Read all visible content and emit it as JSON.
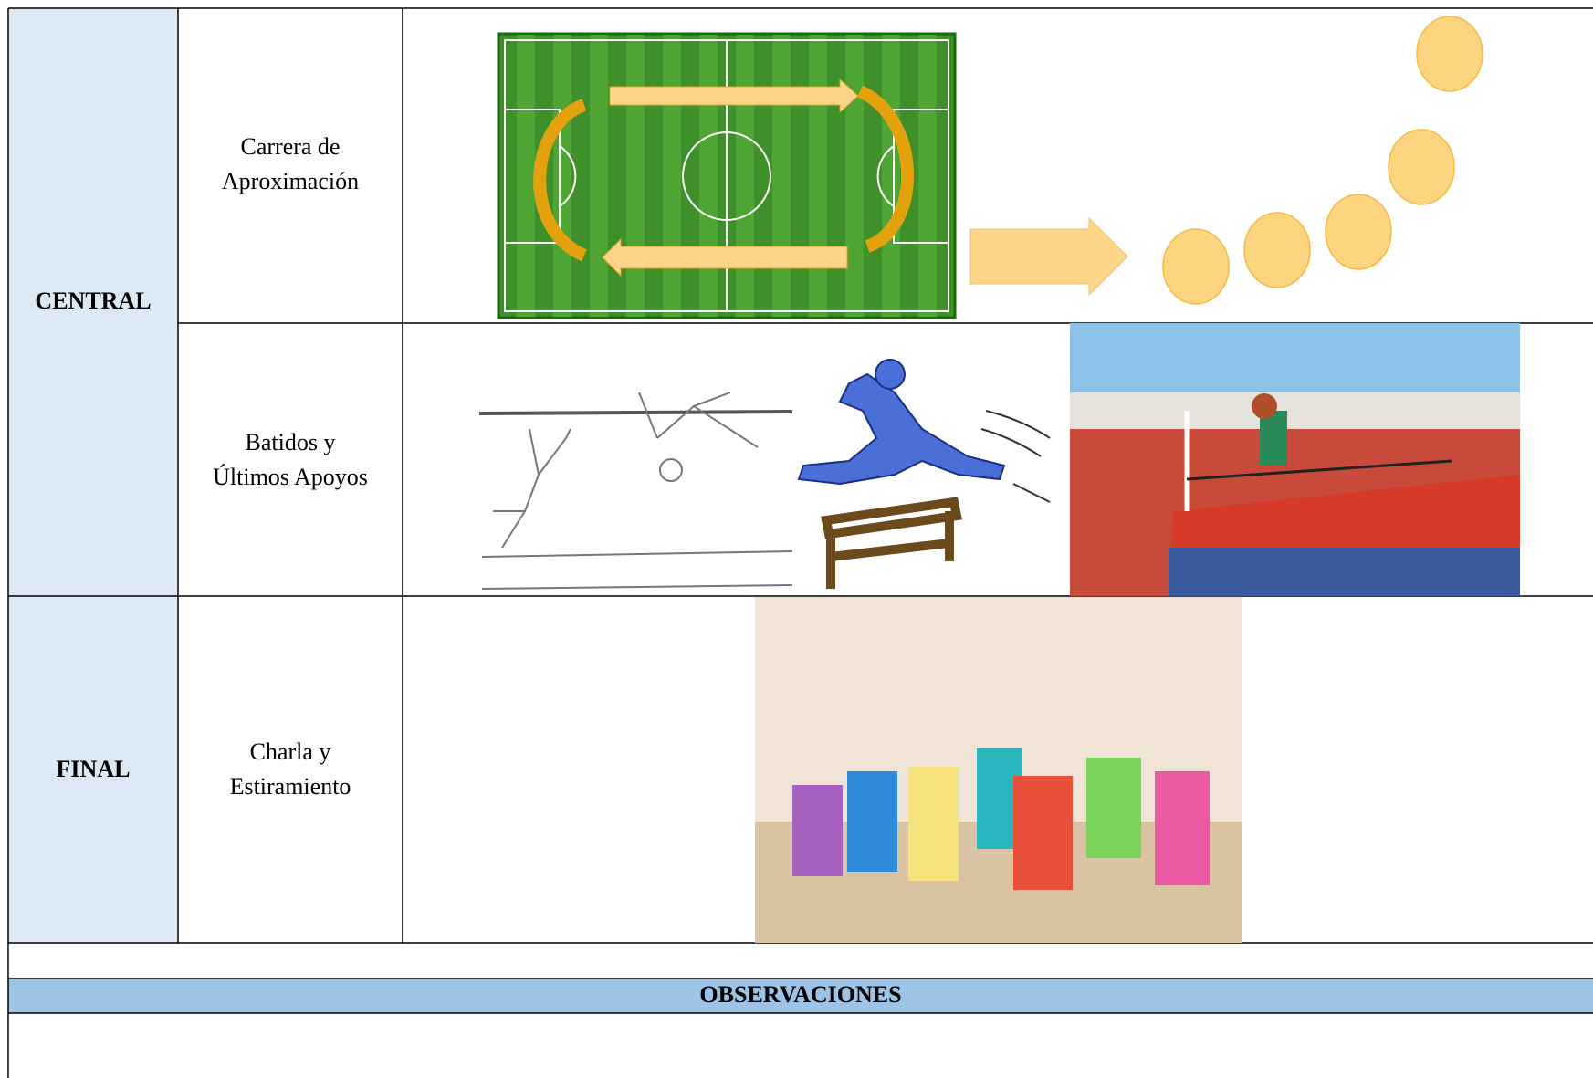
{
  "table": {
    "rows": [
      {
        "phase": "CENTRAL",
        "activity": [
          "Carrera de",
          "Aproximación"
        ]
      },
      {
        "activity": [
          "Batidos y",
          "Últimos Apoyos"
        ]
      },
      {
        "phase": "FINAL",
        "activity": [
          "Charla y",
          "Estiramiento"
        ]
      }
    ],
    "observations_title": "OBSERVACIONES"
  }
}
